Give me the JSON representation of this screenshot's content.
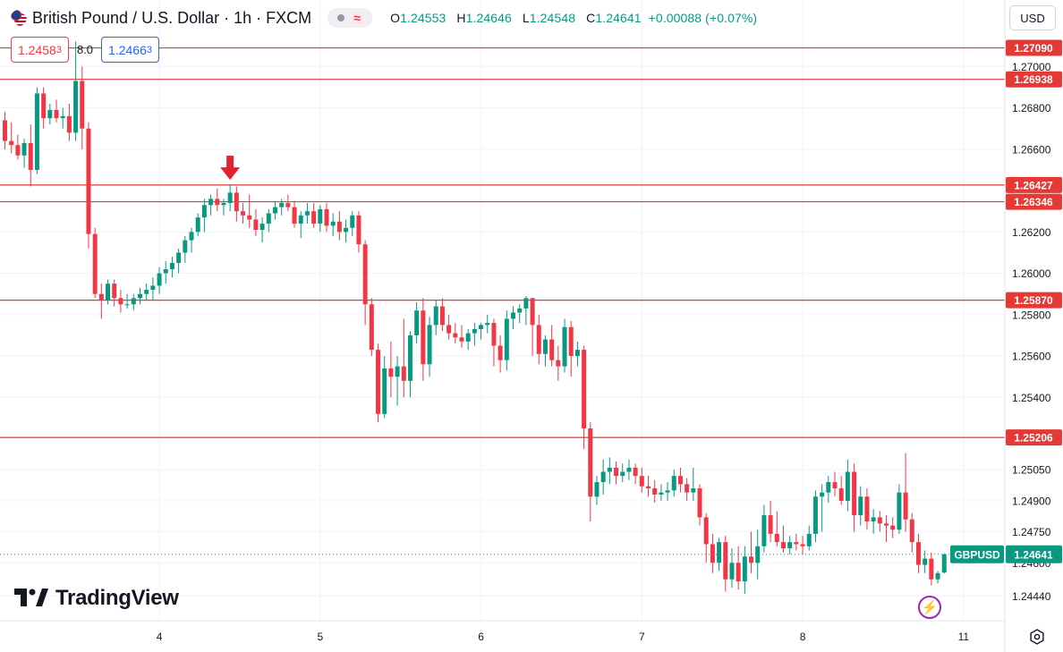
{
  "header": {
    "symbol_title": "British Pound / U.S. Dollar · 1h · FXCM",
    "ohlc": {
      "o_label": "O",
      "o": "1.24553",
      "h_label": "H",
      "h": "1.24646",
      "l_label": "L",
      "l": "1.24548",
      "c_label": "C",
      "c": "1.24641",
      "change": "+0.00088 (+0.07%)"
    }
  },
  "trade": {
    "sell_main": "1.2458",
    "sell_sup": "3",
    "spread": "8.0",
    "buy_main": "1.2466",
    "buy_sup": "3"
  },
  "currency_selector": "USD",
  "logo_text": "TradingView",
  "colors": {
    "up": "#089981",
    "down": "#f23645",
    "level_line": "#e53935",
    "grid": "#f0f3fa",
    "axis_text": "#131722"
  },
  "chart_data": {
    "type": "candlestick",
    "title": "British Pound / U.S. Dollar · 1h · FXCM",
    "ylim": [
      1.2432,
      1.2714
    ],
    "y_ticks": [
      "1.24440",
      "1.24600",
      "1.24750",
      "1.24900",
      "1.25050",
      "1.25400",
      "1.25600",
      "1.25800",
      "1.26000",
      "1.26200",
      "1.26600",
      "1.26800",
      "1.27000"
    ],
    "x_ticks": [
      {
        "label": "4",
        "index": 24
      },
      {
        "label": "5",
        "index": 49
      },
      {
        "label": "6",
        "index": 74
      },
      {
        "label": "7",
        "index": 99
      },
      {
        "label": "8",
        "index": 124
      },
      {
        "label": "11",
        "index": 149
      }
    ],
    "levels": [
      {
        "label": "1.27090",
        "value": 1.2709
      },
      {
        "label": "1.26938",
        "value": 1.26938
      },
      {
        "label": "1.26427",
        "value": 1.26427
      },
      {
        "label": "1.26346",
        "value": 1.26346
      },
      {
        "label": "1.25870",
        "value": 1.2587
      },
      {
        "label": "1.25206",
        "value": 1.25206
      }
    ],
    "last_price": {
      "symbol": "GBPUSD",
      "label": "1.24641",
      "value": 1.24641
    },
    "arrow_at_index": 35,
    "candles": [
      [
        1.2674,
        1.2678,
        1.266,
        1.2664
      ],
      [
        1.2664,
        1.2673,
        1.2658,
        1.2662
      ],
      [
        1.2662,
        1.2667,
        1.2655,
        1.2657
      ],
      [
        1.2657,
        1.2665,
        1.2651,
        1.2663
      ],
      [
        1.2663,
        1.2672,
        1.2642,
        1.265
      ],
      [
        1.265,
        1.269,
        1.2648,
        1.2687
      ],
      [
        1.2687,
        1.269,
        1.267,
        1.2675
      ],
      [
        1.2675,
        1.2682,
        1.2672,
        1.2679
      ],
      [
        1.2679,
        1.2684,
        1.2673,
        1.2675
      ],
      [
        1.2675,
        1.268,
        1.267,
        1.2676
      ],
      [
        1.2676,
        1.2682,
        1.2664,
        1.2668
      ],
      [
        1.2668,
        1.2712,
        1.2664,
        1.2693
      ],
      [
        1.2693,
        1.27,
        1.266,
        1.267
      ],
      [
        1.267,
        1.2673,
        1.2612,
        1.2619
      ],
      [
        1.2619,
        1.2622,
        1.2588,
        1.259
      ],
      [
        1.259,
        1.2595,
        1.2578,
        1.2587
      ],
      [
        1.2587,
        1.2597,
        1.2585,
        1.2595
      ],
      [
        1.2595,
        1.2597,
        1.2584,
        1.2588
      ],
      [
        1.2588,
        1.2592,
        1.2581,
        1.2585
      ],
      [
        1.2585,
        1.259,
        1.2583,
        1.2585
      ],
      [
        1.2585,
        1.259,
        1.2582,
        1.2588
      ],
      [
        1.2588,
        1.2593,
        1.2585,
        1.259
      ],
      [
        1.259,
        1.2595,
        1.2587,
        1.2592
      ],
      [
        1.2592,
        1.2598,
        1.2587,
        1.2594
      ],
      [
        1.2594,
        1.2603,
        1.259,
        1.26
      ],
      [
        1.26,
        1.2606,
        1.2595,
        1.2602
      ],
      [
        1.2602,
        1.2608,
        1.2598,
        1.2605
      ],
      [
        1.2605,
        1.2612,
        1.26,
        1.261
      ],
      [
        1.261,
        1.2618,
        1.2605,
        1.2616
      ],
      [
        1.2616,
        1.2622,
        1.261,
        1.262
      ],
      [
        1.262,
        1.2629,
        1.2618,
        1.2627
      ],
      [
        1.2627,
        1.2636,
        1.262,
        1.2633
      ],
      [
        1.2633,
        1.2638,
        1.2628,
        1.2636
      ],
      [
        1.2636,
        1.2641,
        1.263,
        1.2633
      ],
      [
        1.2633,
        1.2636,
        1.2628,
        1.2634
      ],
      [
        1.2634,
        1.2643,
        1.263,
        1.2639
      ],
      [
        1.2639,
        1.2642,
        1.2625,
        1.263
      ],
      [
        1.263,
        1.2634,
        1.2624,
        1.2628
      ],
      [
        1.2628,
        1.2638,
        1.2622,
        1.2626
      ],
      [
        1.2626,
        1.2631,
        1.2618,
        1.2621
      ],
      [
        1.2621,
        1.2627,
        1.2615,
        1.2624
      ],
      [
        1.2624,
        1.2631,
        1.262,
        1.2629
      ],
      [
        1.2629,
        1.2635,
        1.2626,
        1.2632
      ],
      [
        1.2632,
        1.2636,
        1.2628,
        1.2634
      ],
      [
        1.2634,
        1.2638,
        1.263,
        1.2632
      ],
      [
        1.2632,
        1.2635,
        1.2622,
        1.2624
      ],
      [
        1.2624,
        1.263,
        1.2617,
        1.2628
      ],
      [
        1.2628,
        1.2634,
        1.2624,
        1.263
      ],
      [
        1.263,
        1.2634,
        1.2622,
        1.2624
      ],
      [
        1.2624,
        1.2633,
        1.262,
        1.2631
      ],
      [
        1.2631,
        1.2634,
        1.262,
        1.2623
      ],
      [
        1.2623,
        1.2629,
        1.2618,
        1.2625
      ],
      [
        1.2625,
        1.263,
        1.2616,
        1.262
      ],
      [
        1.262,
        1.2626,
        1.2615,
        1.2622
      ],
      [
        1.2622,
        1.263,
        1.2618,
        1.2628
      ],
      [
        1.2628,
        1.263,
        1.261,
        1.2614
      ],
      [
        1.2614,
        1.2616,
        1.2575,
        1.2585
      ],
      [
        1.2585,
        1.2588,
        1.256,
        1.2563
      ],
      [
        1.2563,
        1.2566,
        1.2528,
        1.2532
      ],
      [
        1.2532,
        1.256,
        1.253,
        1.2554
      ],
      [
        1.2554,
        1.2567,
        1.254,
        1.255
      ],
      [
        1.255,
        1.256,
        1.2536,
        1.2555
      ],
      [
        1.2555,
        1.2578,
        1.254,
        1.2548
      ],
      [
        1.2548,
        1.2572,
        1.254,
        1.257
      ],
      [
        1.257,
        1.2586,
        1.2566,
        1.2582
      ],
      [
        1.2582,
        1.2588,
        1.2548,
        1.2556
      ],
      [
        1.2556,
        1.2579,
        1.255,
        1.2575
      ],
      [
        1.2575,
        1.2587,
        1.257,
        1.2584
      ],
      [
        1.2584,
        1.2588,
        1.2572,
        1.2575
      ],
      [
        1.2575,
        1.258,
        1.2568,
        1.2571
      ],
      [
        1.2571,
        1.2576,
        1.2566,
        1.2569
      ],
      [
        1.2569,
        1.2575,
        1.2564,
        1.2567
      ],
      [
        1.2567,
        1.2573,
        1.2563,
        1.2571
      ],
      [
        1.2571,
        1.2576,
        1.2565,
        1.2573
      ],
      [
        1.2573,
        1.2576,
        1.2568,
        1.2575
      ],
      [
        1.2575,
        1.258,
        1.2571,
        1.2576
      ],
      [
        1.2576,
        1.2578,
        1.2555,
        1.2565
      ],
      [
        1.2565,
        1.257,
        1.2552,
        1.2558
      ],
      [
        1.2558,
        1.2582,
        1.2553,
        1.2578
      ],
      [
        1.2578,
        1.2584,
        1.2573,
        1.2581
      ],
      [
        1.2581,
        1.2585,
        1.2576,
        1.2583
      ],
      [
        1.2583,
        1.2589,
        1.2575,
        1.2588
      ],
      [
        1.2588,
        1.2588,
        1.256,
        1.2575
      ],
      [
        1.2575,
        1.258,
        1.2556,
        1.2561
      ],
      [
        1.2561,
        1.257,
        1.2555,
        1.2568
      ],
      [
        1.2568,
        1.2575,
        1.2555,
        1.2558
      ],
      [
        1.2558,
        1.2565,
        1.2548,
        1.2555
      ],
      [
        1.2555,
        1.2578,
        1.2552,
        1.2574
      ],
      [
        1.2574,
        1.2577,
        1.255,
        1.256
      ],
      [
        1.256,
        1.2567,
        1.2555,
        1.2563
      ],
      [
        1.2563,
        1.2565,
        1.2515,
        1.2525
      ],
      [
        1.2525,
        1.2528,
        1.248,
        1.2492
      ],
      [
        1.2492,
        1.2502,
        1.2488,
        1.2499
      ],
      [
        1.2499,
        1.251,
        1.2493,
        1.2504
      ],
      [
        1.2504,
        1.2511,
        1.2498,
        1.2506
      ],
      [
        1.2506,
        1.2509,
        1.2498,
        1.2502
      ],
      [
        1.2502,
        1.2508,
        1.2499,
        1.2504
      ],
      [
        1.2504,
        1.251,
        1.25,
        1.2506
      ],
      [
        1.2506,
        1.2508,
        1.2498,
        1.2502
      ],
      [
        1.2502,
        1.2506,
        1.2494,
        1.2497
      ],
      [
        1.2497,
        1.2502,
        1.2492,
        1.2496
      ],
      [
        1.2496,
        1.25,
        1.2489,
        1.2493
      ],
      [
        1.2493,
        1.2498,
        1.249,
        1.2494
      ],
      [
        1.2494,
        1.2499,
        1.249,
        1.2495
      ],
      [
        1.2495,
        1.2505,
        1.2492,
        1.2502
      ],
      [
        1.2502,
        1.2506,
        1.2494,
        1.2498
      ],
      [
        1.2498,
        1.2501,
        1.249,
        1.2494
      ],
      [
        1.2494,
        1.2506,
        1.249,
        1.2496
      ],
      [
        1.2496,
        1.2498,
        1.2478,
        1.2482
      ],
      [
        1.2482,
        1.2484,
        1.246,
        1.2469
      ],
      [
        1.2469,
        1.2474,
        1.2455,
        1.246
      ],
      [
        1.246,
        1.2472,
        1.2456,
        1.247
      ],
      [
        1.247,
        1.2473,
        1.2446,
        1.2452
      ],
      [
        1.2452,
        1.2467,
        1.2448,
        1.246
      ],
      [
        1.246,
        1.2468,
        1.2447,
        1.2451
      ],
      [
        1.2451,
        1.2468,
        1.2445,
        1.2463
      ],
      [
        1.2463,
        1.2475,
        1.2455,
        1.246
      ],
      [
        1.246,
        1.2476,
        1.2452,
        1.2468
      ],
      [
        1.2468,
        1.2488,
        1.2465,
        1.2483
      ],
      [
        1.2483,
        1.249,
        1.247,
        1.2474
      ],
      [
        1.2474,
        1.2485,
        1.2468,
        1.247
      ],
      [
        1.247,
        1.2478,
        1.2465,
        1.2467
      ],
      [
        1.2467,
        1.2473,
        1.2464,
        1.247
      ],
      [
        1.247,
        1.2474,
        1.2466,
        1.2469
      ],
      [
        1.2469,
        1.2473,
        1.2464,
        1.2468
      ],
      [
        1.2468,
        1.2478,
        1.2466,
        1.2474
      ],
      [
        1.2474,
        1.2495,
        1.247,
        1.2492
      ],
      [
        1.2492,
        1.2498,
        1.2475,
        1.2494
      ],
      [
        1.2494,
        1.2502,
        1.2489,
        1.2499
      ],
      [
        1.2499,
        1.2504,
        1.2492,
        1.2496
      ],
      [
        1.2496,
        1.2502,
        1.2488,
        1.249
      ],
      [
        1.249,
        1.251,
        1.2485,
        1.2504
      ],
      [
        1.2504,
        1.2508,
        1.2475,
        1.2483
      ],
      [
        1.2483,
        1.2497,
        1.2478,
        1.2492
      ],
      [
        1.2492,
        1.2496,
        1.2476,
        1.248
      ],
      [
        1.248,
        1.2486,
        1.2474,
        1.2482
      ],
      [
        1.2482,
        1.2485,
        1.2475,
        1.2479
      ],
      [
        1.2479,
        1.2483,
        1.247,
        1.2478
      ],
      [
        1.2478,
        1.2482,
        1.2472,
        1.2476
      ],
      [
        1.2476,
        1.2498,
        1.2474,
        1.2494
      ],
      [
        1.2494,
        1.2513,
        1.2475,
        1.2481
      ],
      [
        1.2481,
        1.2484,
        1.2465,
        1.247
      ],
      [
        1.247,
        1.2474,
        1.2455,
        1.2459
      ],
      [
        1.2459,
        1.2466,
        1.2455,
        1.2462
      ],
      [
        1.2462,
        1.2465,
        1.2449,
        1.2452
      ],
      [
        1.2452,
        1.2456,
        1.245,
        1.2455
      ],
      [
        1.24553,
        1.24646,
        1.24548,
        1.24641
      ]
    ]
  }
}
